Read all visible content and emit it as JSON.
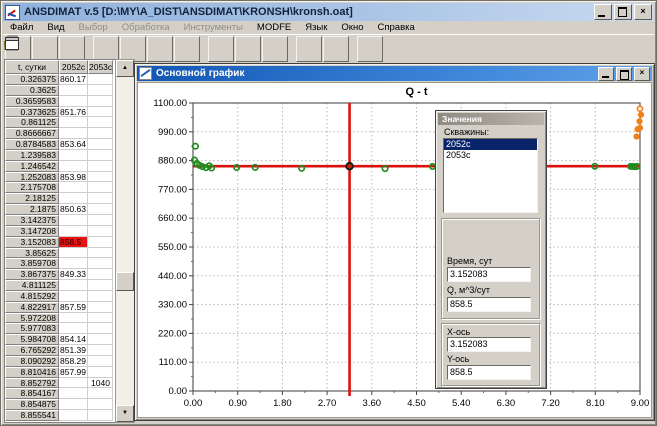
{
  "window": {
    "title": "ANSDIMAT v.5 [D:\\MY\\A_DIST\\ANSDIMAT\\KRONSH\\kronsh.oat]"
  },
  "menu": {
    "items": [
      {
        "label": "Файл",
        "enabled": true
      },
      {
        "label": "Вид",
        "enabled": true
      },
      {
        "label": "Выбор",
        "enabled": false
      },
      {
        "label": "Обработка",
        "enabled": false
      },
      {
        "label": "Инструменты",
        "enabled": false
      },
      {
        "label": "MODFE",
        "enabled": true
      },
      {
        "label": "Язык",
        "enabled": true
      },
      {
        "label": "Окно",
        "enabled": true
      },
      {
        "label": "Справка",
        "enabled": true
      }
    ]
  },
  "toolbar": {
    "buttons": [
      {
        "icon": "new-file-icon",
        "enabled": true,
        "group_start": false
      },
      {
        "icon": "open-file-icon",
        "enabled": true,
        "group_start": false
      },
      {
        "icon": "edit-pencil-icon",
        "enabled": true,
        "group_start": false
      },
      {
        "icon": "data-table-icon",
        "enabled": false,
        "group_start": true
      },
      {
        "icon": "list-report-icon",
        "enabled": false,
        "group_start": false
      },
      {
        "icon": "table-report-icon",
        "enabled": false,
        "group_start": false
      },
      {
        "icon": "notes-report-icon",
        "enabled": false,
        "group_start": false
      },
      {
        "icon": "chart-flat-icon",
        "enabled": false,
        "group_start": true
      },
      {
        "icon": "chart-line-icon",
        "enabled": false,
        "group_start": false
      },
      {
        "icon": "chart-pause-icon",
        "enabled": false,
        "group_start": false
      },
      {
        "icon": "chart-cross-icon",
        "enabled": false,
        "group_start": true
      },
      {
        "icon": "chart-slope-icon",
        "enabled": false,
        "group_start": false
      },
      {
        "icon": "window-frame-icon",
        "enabled": true,
        "group_start": true
      }
    ]
  },
  "table": {
    "columns": [
      "t, сутки",
      "2052c",
      "2053c"
    ],
    "rows": [
      [
        "0.326375",
        "860.17",
        ""
      ],
      [
        "0.3625",
        "",
        ""
      ],
      [
        "0.3659583",
        "",
        ""
      ],
      [
        "0.373625",
        "851.76",
        ""
      ],
      [
        "0.861125",
        "",
        ""
      ],
      [
        "0.8666667",
        "",
        ""
      ],
      [
        "0.8784583",
        "853.64",
        ""
      ],
      [
        "1.239583",
        "",
        ""
      ],
      [
        "1.246542",
        "",
        ""
      ],
      [
        "1.252083",
        "853.98",
        ""
      ],
      [
        "2.175708",
        "",
        ""
      ],
      [
        "2.18125",
        "",
        ""
      ],
      [
        "2.1875",
        "850.63",
        ""
      ],
      [
        "3.142375",
        "",
        ""
      ],
      [
        "3.147208",
        "",
        ""
      ],
      [
        "3.152083",
        "858.5",
        ""
      ],
      [
        "3.85625",
        "",
        ""
      ],
      [
        "3.859708",
        "",
        ""
      ],
      [
        "3.867375",
        "849.33",
        ""
      ],
      [
        "4.811125",
        "",
        ""
      ],
      [
        "4.815292",
        "",
        ""
      ],
      [
        "4.822917",
        "857.59",
        ""
      ],
      [
        "5.972208",
        "",
        ""
      ],
      [
        "5.977083",
        "",
        ""
      ],
      [
        "5.984708",
        "854.14",
        ""
      ],
      [
        "6.765292",
        "851.39",
        ""
      ],
      [
        "8.090292",
        "858.29",
        ""
      ],
      [
        "8.810416",
        "857.99",
        ""
      ],
      [
        "8.852792",
        "",
        "1040"
      ],
      [
        "8.854167",
        "",
        ""
      ],
      [
        "8.854875",
        "",
        ""
      ],
      [
        "8.855541",
        "",
        ""
      ]
    ],
    "highlight": {
      "row": 15,
      "col": 1,
      "bg": "#e81414"
    }
  },
  "chart_window": {
    "title": "Основной график"
  },
  "values_panel": {
    "title": "Значения",
    "wells_label": "Скважины:",
    "wells": [
      "2052c",
      "2053c"
    ],
    "selected_well": "2052c",
    "time_label": "Время, сут",
    "time_value": "3.152083",
    "q_label": "Q, м^3/сут",
    "q_value": "858.5",
    "x_axis_label": "X-ось",
    "x_axis_value": "3.152083",
    "y_axis_label": "Y-ось",
    "y_axis_value": "858.5"
  },
  "chart_data": {
    "type": "scatter",
    "title": "Q - t",
    "xlim": [
      0,
      9
    ],
    "ylim": [
      0,
      1100
    ],
    "xticks": [
      0,
      0.9,
      1.8,
      2.7,
      3.6,
      4.5,
      5.4,
      6.3,
      7.2,
      8.1,
      9
    ],
    "yticks": [
      0,
      110,
      220,
      330,
      440,
      550,
      660,
      770,
      880,
      990,
      1100
    ],
    "grid": true,
    "crosshair": {
      "x": 3.152083,
      "y": 858.5,
      "color": "#dd1010"
    },
    "selected_point": {
      "x": 3.152083,
      "y": 858.5
    },
    "series": [
      {
        "name": "2052c",
        "color": "#1f8c1f",
        "marker": "open-circle",
        "points": [
          [
            0.05,
            935
          ],
          [
            0.03,
            882
          ],
          [
            0.08,
            869
          ],
          [
            0.13,
            862
          ],
          [
            0.19,
            857
          ],
          [
            0.26,
            853
          ],
          [
            0.326375,
            860.17
          ],
          [
            0.373625,
            851.76
          ],
          [
            0.8784583,
            853.64
          ],
          [
            1.252083,
            853.98
          ],
          [
            2.1875,
            850.63
          ],
          [
            3.152083,
            858.5
          ],
          [
            3.867375,
            849.33
          ],
          [
            4.822917,
            857.59
          ],
          [
            5.984708,
            854.14
          ],
          [
            6.765292,
            851.39
          ],
          [
            8.090292,
            858.29
          ],
          [
            8.810416,
            857.99
          ],
          [
            8.852792,
            857.5
          ],
          [
            8.89,
            856.8
          ],
          [
            8.94,
            857.6
          ]
        ]
      },
      {
        "name": "2053c",
        "color": "#f08019",
        "marker": "filled-circle",
        "points": [
          [
            8.93,
            972
          ],
          [
            8.95,
            1000
          ],
          [
            9.0,
            1005
          ],
          [
            8.99,
            1030
          ],
          [
            9.02,
            1055
          ]
        ],
        "ring_points": [
          [
            9.0,
            1078
          ]
        ]
      }
    ]
  }
}
